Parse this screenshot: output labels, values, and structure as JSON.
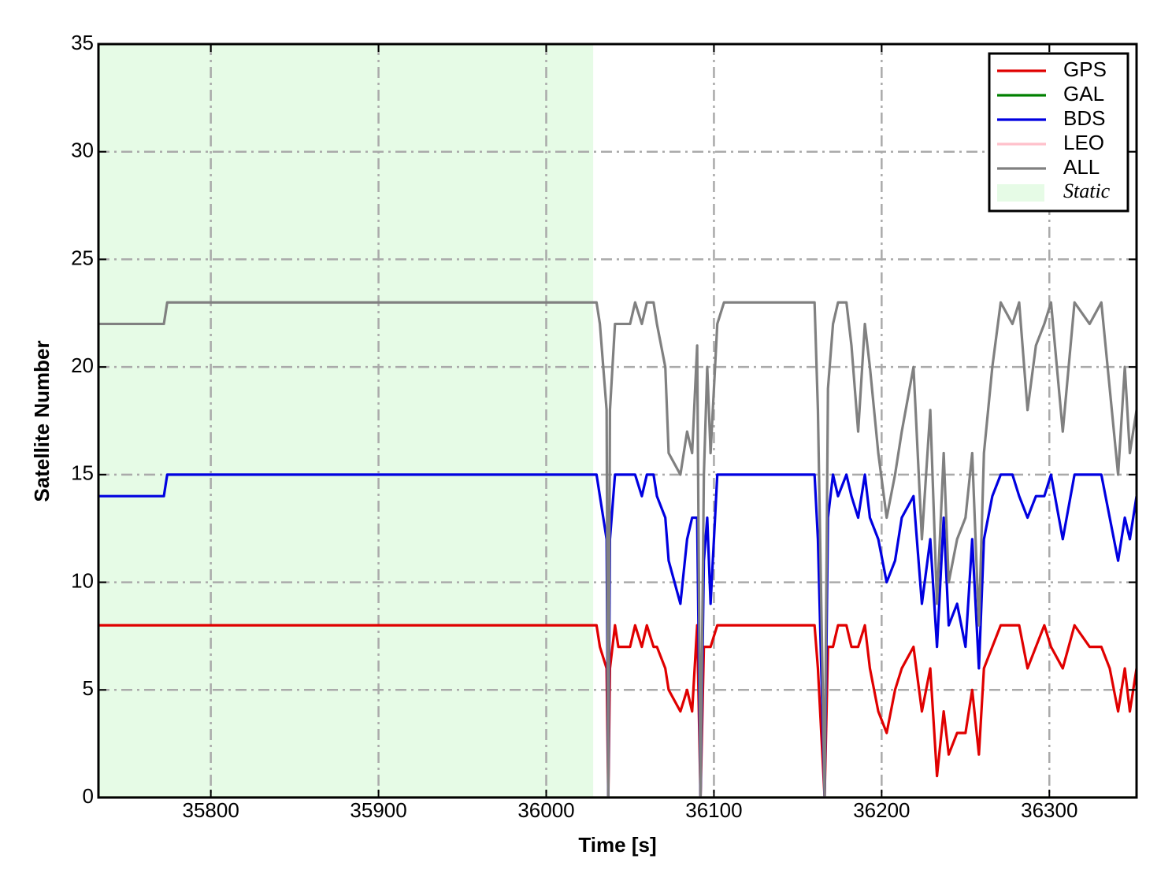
{
  "chart_data": {
    "type": "line",
    "xlabel": "Time [s]",
    "ylabel": "Satellite Number",
    "x": [
      35733,
      35772,
      35774,
      36030,
      36032,
      36036,
      36037,
      36038,
      36041,
      36043,
      36050,
      36053,
      36057,
      36060,
      36064,
      36066,
      36071,
      36073,
      36080,
      36084,
      36087,
      36090,
      36092,
      36094,
      36096,
      36098,
      36102,
      36106,
      36160,
      36162,
      36166,
      36168,
      36171,
      36174,
      36179,
      36182,
      36186,
      36190,
      36193,
      36198,
      36203,
      36208,
      36212,
      36219,
      36224,
      36229,
      36233,
      36237,
      36240,
      36245,
      36250,
      36254,
      36258,
      36261,
      36266,
      36271,
      36278,
      36282,
      36287,
      36292,
      36297,
      36301,
      36308,
      36315,
      36324,
      36331,
      36336,
      36341,
      36345,
      36348,
      36352
    ],
    "series": [
      {
        "name": "GPS",
        "color": "#e00000",
        "values": [
          8,
          8,
          8,
          8,
          7,
          6,
          0,
          6,
          8,
          7,
          7,
          8,
          7,
          8,
          7,
          7,
          6,
          5,
          4,
          5,
          4,
          8,
          0,
          7,
          7,
          7,
          8,
          8,
          8,
          6,
          0,
          7,
          7,
          8,
          8,
          7,
          7,
          8,
          6,
          4,
          3,
          5,
          6,
          7,
          4,
          6,
          1,
          4,
          2,
          3,
          3,
          5,
          2,
          6,
          7,
          8,
          8,
          8,
          6,
          7,
          8,
          7,
          6,
          8,
          7,
          7,
          6,
          4,
          6,
          4,
          6
        ]
      },
      {
        "name": "GAL",
        "color": "#008000",
        "values": [
          0,
          0,
          0,
          0,
          0,
          0,
          0,
          0,
          0,
          0,
          0,
          0,
          0,
          0,
          0,
          0,
          0,
          0,
          0,
          0,
          0,
          0,
          0,
          0,
          0,
          0,
          0,
          0,
          0,
          0,
          0,
          0,
          0,
          0,
          0,
          0,
          0,
          0,
          0,
          0,
          0,
          0,
          0,
          0,
          0,
          0,
          0,
          0,
          0,
          0,
          0,
          0,
          0,
          0,
          0,
          0,
          0,
          0,
          0,
          0,
          0,
          0,
          0,
          0,
          0,
          0,
          0,
          0,
          0,
          0,
          0
        ]
      },
      {
        "name": "BDS",
        "color": "#0000e0",
        "values": [
          14,
          14,
          15,
          15,
          14,
          12,
          0,
          12,
          15,
          15,
          15,
          15,
          14,
          15,
          15,
          14,
          13,
          11,
          9,
          12,
          13,
          13,
          0,
          11,
          13,
          9,
          15,
          15,
          15,
          12,
          0,
          13,
          15,
          14,
          15,
          14,
          13,
          15,
          13,
          12,
          10,
          11,
          13,
          14,
          9,
          12,
          7,
          13,
          8,
          9,
          7,
          12,
          6,
          12,
          14,
          15,
          15,
          14,
          13,
          14,
          14,
          15,
          12,
          15,
          15,
          15,
          13,
          11,
          13,
          12,
          14
        ]
      },
      {
        "name": "LEO",
        "color": "#ffc0cb",
        "values": [
          0,
          0,
          0,
          0,
          0,
          0,
          0,
          0,
          0,
          0,
          0,
          0,
          0,
          0,
          0,
          0,
          0,
          0,
          0,
          0,
          0,
          0,
          0,
          0,
          0,
          0,
          0,
          0,
          0,
          0,
          0,
          0,
          0,
          0,
          0,
          0,
          0,
          0,
          0,
          0,
          0,
          0,
          0,
          0,
          0,
          0,
          0,
          0,
          0,
          0,
          0,
          0,
          0,
          0,
          0,
          0,
          0,
          0,
          0,
          0,
          0,
          0,
          0,
          0,
          0,
          0,
          0,
          0,
          0,
          0,
          0
        ]
      },
      {
        "name": "ALL",
        "color": "#808080",
        "values": [
          22,
          22,
          23,
          23,
          22,
          18,
          0,
          18,
          22,
          22,
          22,
          23,
          22,
          23,
          23,
          22,
          20,
          16,
          15,
          17,
          16,
          21,
          0,
          15,
          20,
          16,
          22,
          23,
          23,
          18,
          0,
          19,
          22,
          23,
          23,
          21,
          17,
          22,
          20,
          16,
          13,
          15,
          17,
          20,
          12,
          18,
          9,
          16,
          10,
          12,
          13,
          16,
          8,
          16,
          20,
          23,
          22,
          23,
          18,
          21,
          22,
          23,
          17,
          23,
          22,
          23,
          19,
          15,
          20,
          16,
          18
        ]
      }
    ],
    "static_label": "Static",
    "static_range": [
      35733,
      36028
    ],
    "static_color": "#e6fbe6",
    "xlim": [
      35733,
      36352
    ],
    "xticks": [
      35800,
      35900,
      36000,
      36100,
      36200,
      36300
    ],
    "ylim": [
      0,
      35
    ],
    "yticks": [
      0,
      5,
      10,
      15,
      20,
      25,
      30,
      35
    ],
    "grid": true,
    "legend": "upper right"
  }
}
